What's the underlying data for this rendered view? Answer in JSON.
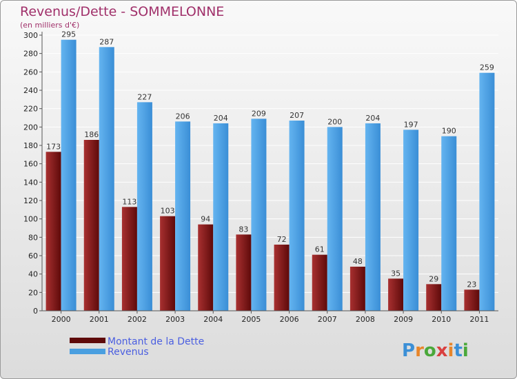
{
  "chart_data": {
    "type": "bar",
    "title": "Revenus/Dette - SOMMELONNE",
    "subtitle": "(en milliers d'€)",
    "categories": [
      "2000",
      "2001",
      "2002",
      "2003",
      "2004",
      "2005",
      "2006",
      "2007",
      "2008",
      "2009",
      "2010",
      "2011"
    ],
    "series": [
      {
        "name": "Montant de la Dette",
        "color": "#7b1515",
        "values": [
          173,
          186,
          113,
          103,
          94,
          83,
          72,
          61,
          48,
          35,
          29,
          23
        ]
      },
      {
        "name": "Revenus",
        "color": "#4a9fe0",
        "values": [
          295,
          287,
          227,
          206,
          204,
          209,
          207,
          200,
          204,
          197,
          190,
          259
        ]
      }
    ],
    "ylim": [
      0,
      300
    ],
    "yticks": [
      0,
      20,
      40,
      60,
      80,
      100,
      120,
      140,
      160,
      180,
      200,
      220,
      240,
      260,
      280,
      300
    ],
    "grid": true,
    "legend_position": "bottom-left",
    "logo": "Proxiti"
  }
}
